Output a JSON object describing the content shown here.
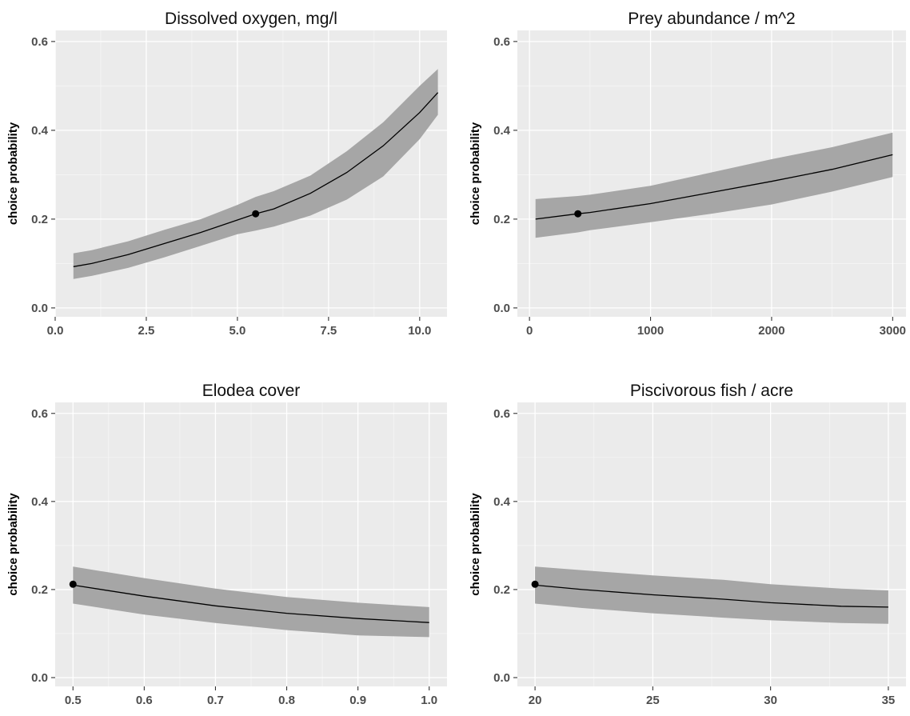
{
  "colors": {
    "panel_background": "#ebebeb",
    "gridline": "#ffffff",
    "ribbon": "#a6a6a6",
    "curve": "#000000",
    "point": "#000000"
  },
  "chart_data": [
    {
      "type": "line",
      "title": "Dissolved oxygen, mg/l",
      "xlabel": "",
      "ylabel": "choice probability",
      "xlim": [
        0,
        10.75
      ],
      "ylim": [
        -0.02,
        0.625
      ],
      "xticks": [
        0,
        2.5,
        5,
        7.5,
        10
      ],
      "xtick_labels": [
        "0.0",
        "2.5",
        "5.0",
        "7.5",
        "10.0"
      ],
      "yticks": [
        0,
        0.2,
        0.4,
        0.6
      ],
      "ytick_labels": [
        "0.0",
        "0.2",
        "0.4",
        "0.6"
      ],
      "grid": true,
      "x": [
        0.5,
        1.0,
        2.0,
        3.0,
        4.0,
        5.0,
        5.5,
        6.0,
        7.0,
        8.0,
        9.0,
        10.0,
        10.5
      ],
      "y": [
        0.093,
        0.1,
        0.12,
        0.145,
        0.17,
        0.198,
        0.212,
        0.223,
        0.258,
        0.305,
        0.365,
        0.44,
        0.485
      ],
      "y_lower": [
        0.065,
        0.072,
        0.09,
        0.114,
        0.14,
        0.166,
        0.174,
        0.183,
        0.208,
        0.244,
        0.296,
        0.38,
        0.435
      ],
      "y_upper": [
        0.123,
        0.13,
        0.15,
        0.176,
        0.2,
        0.232,
        0.25,
        0.263,
        0.298,
        0.353,
        0.418,
        0.5,
        0.538
      ],
      "reference_point": [
        5.5,
        0.212
      ]
    },
    {
      "type": "line",
      "title": "Prey abundance / m^2",
      "xlabel": "",
      "ylabel": "choice probability",
      "xlim": [
        -100,
        3110
      ],
      "ylim": [
        -0.02,
        0.625
      ],
      "xticks": [
        0,
        1000,
        2000,
        3000
      ],
      "xtick_labels": [
        "0",
        "1000",
        "2000",
        "3000"
      ],
      "yticks": [
        0,
        0.2,
        0.4,
        0.6
      ],
      "ytick_labels": [
        "0.0",
        "0.2",
        "0.4",
        "0.6"
      ],
      "grid": true,
      "x": [
        50,
        400,
        500,
        1000,
        1500,
        2000,
        2500,
        3000
      ],
      "y": [
        0.2,
        0.212,
        0.215,
        0.235,
        0.26,
        0.285,
        0.312,
        0.345
      ],
      "y_lower": [
        0.158,
        0.17,
        0.175,
        0.193,
        0.212,
        0.233,
        0.262,
        0.295
      ],
      "y_upper": [
        0.245,
        0.252,
        0.255,
        0.275,
        0.305,
        0.335,
        0.362,
        0.395
      ],
      "reference_point": [
        400,
        0.212
      ]
    },
    {
      "type": "line",
      "title": "Elodea cover",
      "xlabel": "",
      "ylabel": "choice probability",
      "xlim": [
        0.475,
        1.025
      ],
      "ylim": [
        -0.02,
        0.625
      ],
      "xticks": [
        0.5,
        0.6,
        0.7,
        0.8,
        0.9,
        1.0
      ],
      "xtick_labels": [
        "0.5",
        "0.6",
        "0.7",
        "0.8",
        "0.9",
        "1.0"
      ],
      "yticks": [
        0,
        0.2,
        0.4,
        0.6
      ],
      "ytick_labels": [
        "0.0",
        "0.2",
        "0.4",
        "0.6"
      ],
      "grid": true,
      "x": [
        0.5,
        0.6,
        0.7,
        0.8,
        0.9,
        1.0
      ],
      "y": [
        0.21,
        0.185,
        0.163,
        0.146,
        0.134,
        0.125
      ],
      "y_lower": [
        0.168,
        0.143,
        0.124,
        0.108,
        0.096,
        0.092
      ],
      "y_upper": [
        0.252,
        0.226,
        0.202,
        0.183,
        0.17,
        0.16
      ],
      "reference_point": [
        0.5,
        0.212
      ]
    },
    {
      "type": "line",
      "title": "Piscivorous fish / acre",
      "xlabel": "",
      "ylabel": "choice probability",
      "xlim": [
        19.25,
        35.75
      ],
      "ylim": [
        -0.02,
        0.625
      ],
      "xticks": [
        20,
        25,
        30,
        35
      ],
      "xtick_labels": [
        "20",
        "25",
        "30",
        "35"
      ],
      "yticks": [
        0,
        0.2,
        0.4,
        0.6
      ],
      "ytick_labels": [
        "0.0",
        "0.2",
        "0.4",
        "0.6"
      ],
      "grid": true,
      "x": [
        20,
        22,
        25,
        28,
        30,
        33,
        35
      ],
      "y": [
        0.21,
        0.2,
        0.188,
        0.178,
        0.17,
        0.162,
        0.16
      ],
      "y_lower": [
        0.168,
        0.158,
        0.146,
        0.136,
        0.13,
        0.124,
        0.122
      ],
      "y_upper": [
        0.252,
        0.244,
        0.232,
        0.222,
        0.212,
        0.202,
        0.198
      ],
      "reference_point": [
        20,
        0.212
      ]
    }
  ]
}
